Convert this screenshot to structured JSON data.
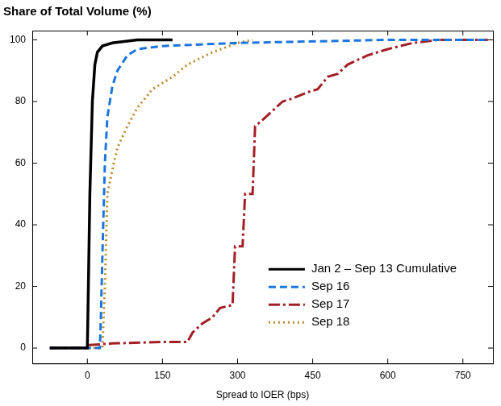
{
  "chart_data": {
    "type": "line",
    "title": "Share of Total Volume (%)",
    "x_label": "Spread to IOER (bps)",
    "xlim": [
      -110,
      810
    ],
    "xticks": [
      0,
      150,
      300,
      450,
      600,
      750
    ],
    "ylim": [
      -5,
      103
    ],
    "yticks": [
      0,
      20,
      40,
      60,
      80,
      100
    ],
    "grid": false,
    "legend": "lower right",
    "series": [
      {
        "name": "Jan 2 – Sep 13 Cumulative",
        "color": "#000000",
        "line_style": "solid",
        "x": [
          -75,
          0,
          2,
          5,
          10,
          15,
          20,
          30,
          50,
          100,
          170
        ],
        "values": [
          0,
          0,
          20,
          50,
          80,
          92,
          96,
          98,
          99,
          100,
          100
        ]
      },
      {
        "name": "Sep 16",
        "color": "#1a75e0",
        "line_style": "dashed",
        "x": [
          -75,
          25,
          27,
          30,
          35,
          40,
          50,
          60,
          80,
          100,
          150,
          300,
          600,
          800
        ],
        "values": [
          0,
          0,
          10,
          30,
          60,
          75,
          85,
          90,
          95,
          97,
          98,
          99,
          100,
          100
        ]
      },
      {
        "name": "Sep 17",
        "color": "#a31f24",
        "line_style": "dashdot",
        "x": [
          -75,
          0,
          5,
          50,
          150,
          200,
          210,
          230,
          250,
          265,
          290,
          295,
          310,
          315,
          330,
          335,
          350,
          370,
          390,
          410,
          440,
          460,
          480,
          500,
          520,
          560,
          600,
          650,
          700,
          800
        ],
        "values": [
          0,
          0,
          1,
          1.5,
          2,
          2,
          5,
          8,
          10,
          13,
          14,
          33,
          33,
          50,
          50,
          72,
          74,
          77,
          80,
          81,
          83,
          84,
          88,
          89,
          92,
          95,
          97,
          99,
          100,
          100
        ]
      },
      {
        "name": "Sep 18",
        "color": "#b8892a",
        "line_style": "dotted",
        "x": [
          -75,
          30,
          35,
          40,
          50,
          60,
          80,
          100,
          130,
          170,
          200,
          250,
          300,
          330
        ],
        "values": [
          0,
          0,
          20,
          50,
          58,
          65,
          72,
          78,
          84,
          88,
          92,
          96,
          99,
          100
        ]
      }
    ]
  }
}
